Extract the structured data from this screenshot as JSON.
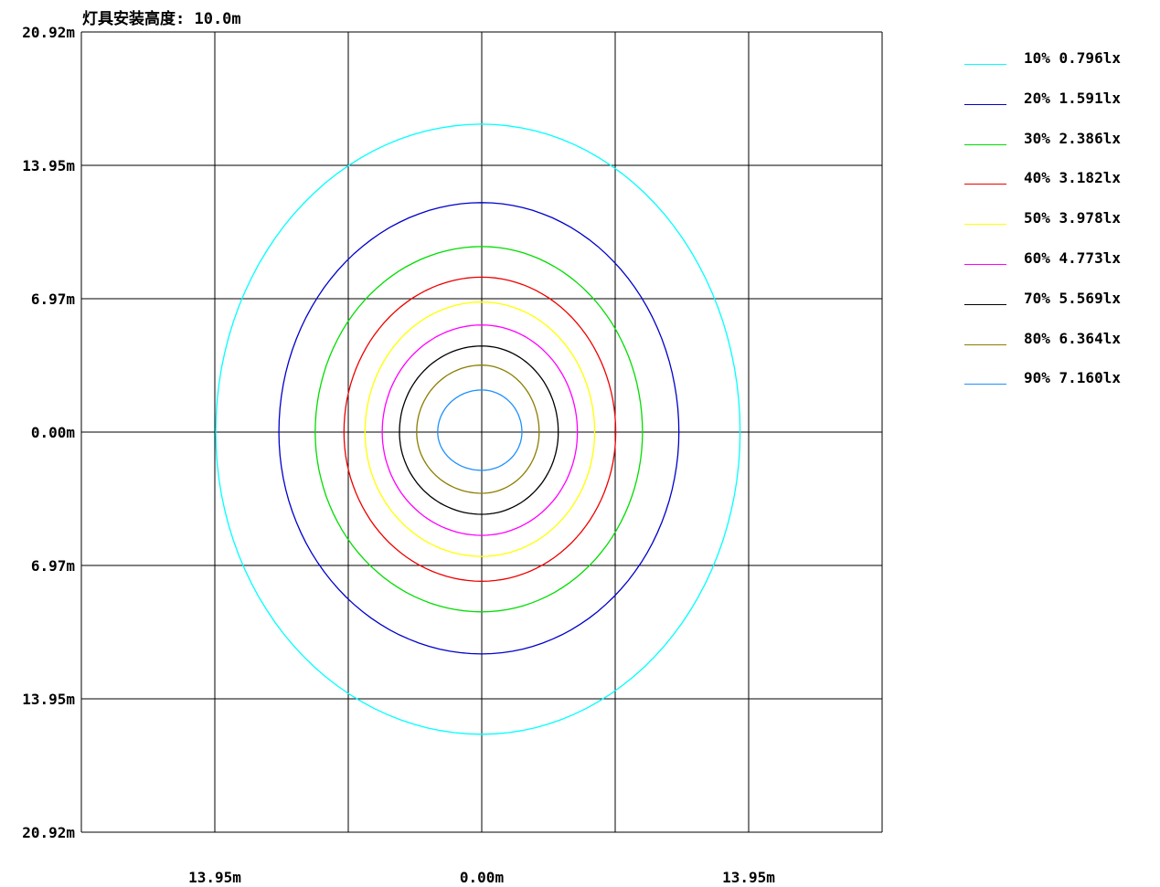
{
  "chart_data": {
    "type": "line",
    "title": "灯具安装高度: 10.0m",
    "y_tick_labels": [
      "20.92m",
      "13.95m",
      "6.97m",
      "0.00m",
      "6.97m",
      "13.95m",
      "20.92m"
    ],
    "x_tick_labels": [
      "13.95m",
      "0.00m",
      "13.95m"
    ],
    "xlim": [
      -20.92,
      20.92
    ],
    "ylim": [
      -20.92,
      20.92
    ],
    "grid": true,
    "legend_position": "right",
    "series": [
      {
        "name": "10% 0.796lx",
        "color": "#00ffff",
        "left": 13.9,
        "right": 13.5,
        "top": 16.1,
        "bottom": 15.8
      },
      {
        "name": "20% 1.591lx",
        "color": "#0000cc",
        "left": 10.6,
        "right": 10.3,
        "top": 12.0,
        "bottom": 11.6
      },
      {
        "name": "30% 2.386lx",
        "color": "#00dd00",
        "left": 8.7,
        "right": 8.4,
        "top": 9.7,
        "bottom": 9.4
      },
      {
        "name": "40% 3.182lx",
        "color": "#ee0000",
        "left": 7.2,
        "right": 7.0,
        "top": 8.1,
        "bottom": 7.8
      },
      {
        "name": "50% 3.978lx",
        "color": "#ffff00",
        "left": 6.1,
        "right": 5.9,
        "top": 6.8,
        "bottom": 6.5
      },
      {
        "name": "60% 4.773lx",
        "color": "#ff00ff",
        "left": 5.2,
        "right": 5.0,
        "top": 5.6,
        "bottom": 5.4
      },
      {
        "name": "70% 5.569lx",
        "color": "#000000",
        "left": 4.3,
        "right": 4.0,
        "top": 4.5,
        "bottom": 4.3
      },
      {
        "name": "80% 6.364lx",
        "color": "#8b7d00",
        "left": 3.4,
        "right": 3.0,
        "top": 3.5,
        "bottom": 3.2
      },
      {
        "name": "90% 7.160lx",
        "color": "#1e90ff",
        "left": 2.3,
        "right": 2.1,
        "top": 2.2,
        "bottom": 2.0
      }
    ]
  }
}
